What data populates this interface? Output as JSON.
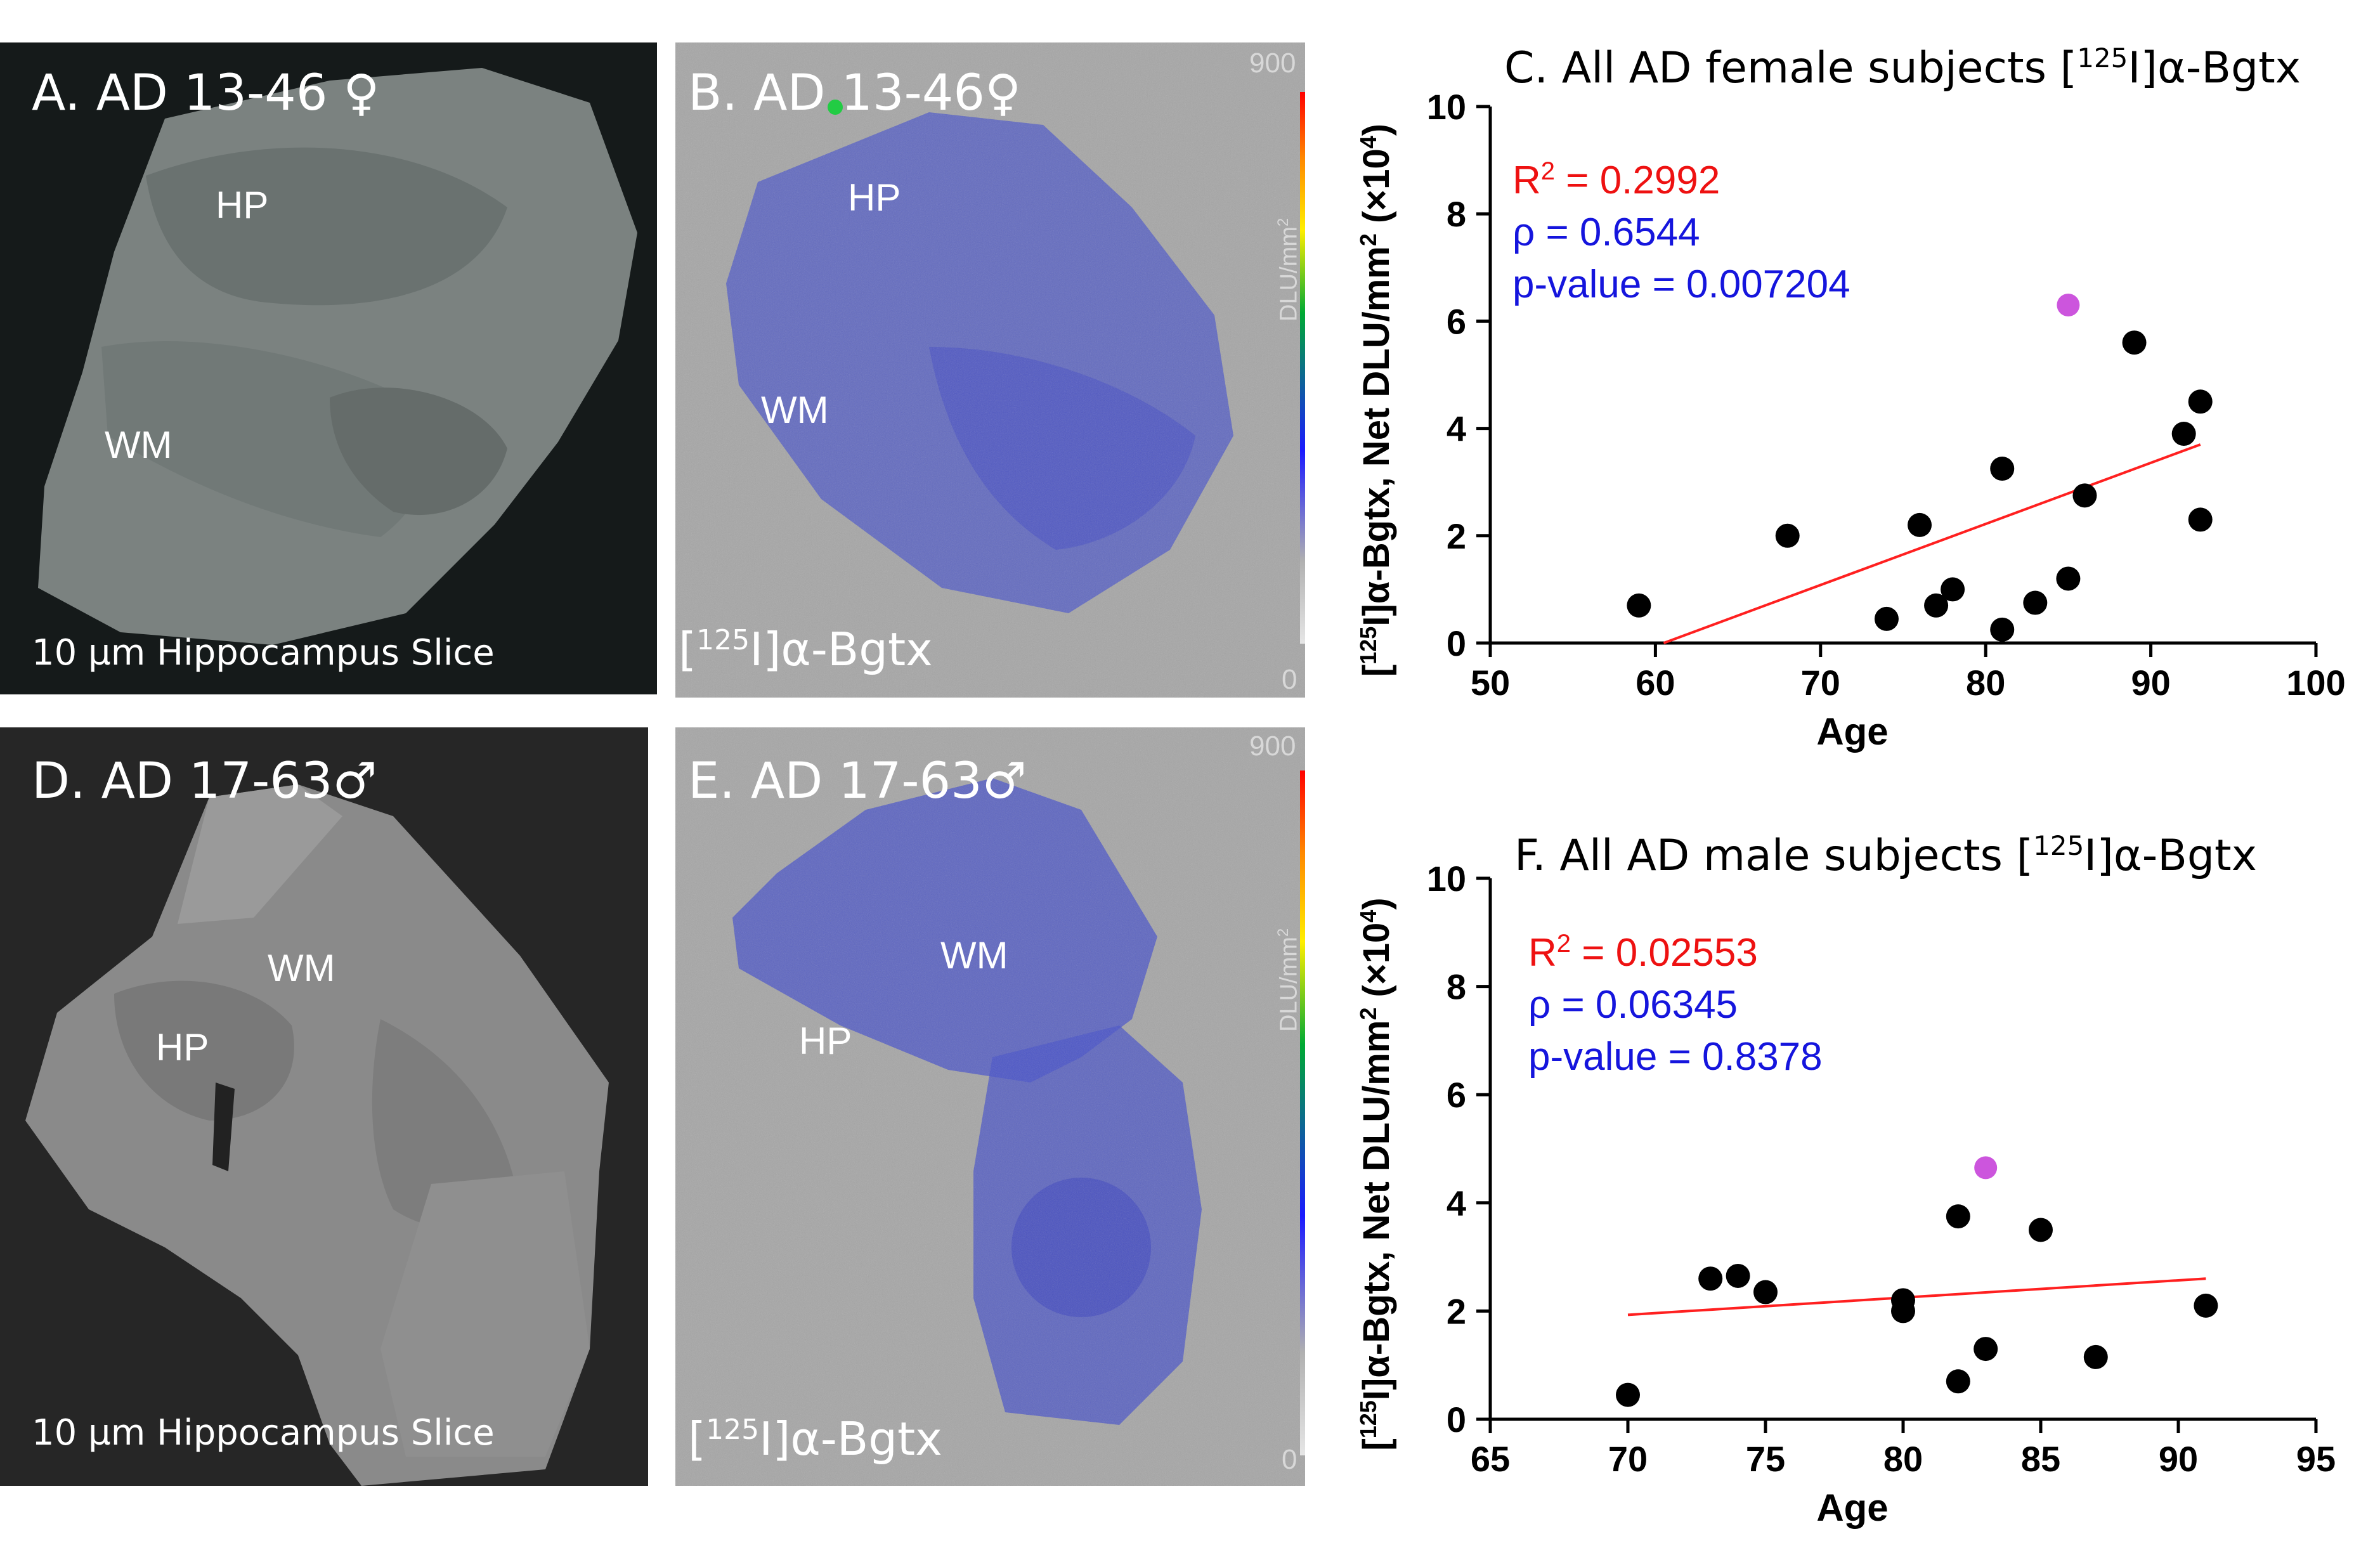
{
  "panels": {
    "a": {
      "title": "A. AD 13-46 ♀",
      "hp_label": "HP",
      "wm_label": "WM",
      "caption": "10 µm Hippocampus Slice"
    },
    "b": {
      "title": "B. AD 13-46♀",
      "hp_label": "HP",
      "wm_label": "WM",
      "caption": "[125I]α-Bgtx",
      "scale_max": "900",
      "scale_min": "0",
      "scale_unit": "DLU/mm2"
    },
    "d": {
      "title": "D. AD 17-63♂",
      "hp_label": "HP",
      "wm_label": "WM",
      "caption": "10 µm Hippocampus Slice"
    },
    "e": {
      "title": "E. AD 17-63♂",
      "hp_label": "HP",
      "wm_label": "WM",
      "caption": "[125I]α-Bgtx",
      "scale_max": "900",
      "scale_min": "0",
      "scale_unit": "DLU/mm2"
    }
  },
  "colors": {
    "regression": "#ff2020",
    "outlier": "#cc55dd",
    "point": "#000000",
    "r2_text": "#ee1111",
    "stat_text": "#1515dd"
  },
  "chart_data": [
    {
      "type": "scatter",
      "title": "C. All AD female subjects [125I]α-Bgtx",
      "xlabel": "Age",
      "ylabel": "[125I]α-Bgtx, Net DLU/mm2 (×104)",
      "xlim": [
        50,
        100
      ],
      "ylim": [
        0,
        10
      ],
      "xticks": [
        50,
        60,
        70,
        80,
        90,
        100
      ],
      "yticks": [
        0,
        2,
        4,
        6,
        8,
        10
      ],
      "points": [
        {
          "x": 59,
          "y": 0.7
        },
        {
          "x": 68,
          "y": 2.0
        },
        {
          "x": 74,
          "y": 0.45
        },
        {
          "x": 76,
          "y": 2.2
        },
        {
          "x": 77,
          "y": 0.7
        },
        {
          "x": 78,
          "y": 1.0
        },
        {
          "x": 81,
          "y": 0.25
        },
        {
          "x": 81,
          "y": 3.25
        },
        {
          "x": 83,
          "y": 0.75
        },
        {
          "x": 85,
          "y": 1.2
        },
        {
          "x": 86,
          "y": 2.75
        },
        {
          "x": 89,
          "y": 5.6
        },
        {
          "x": 92,
          "y": 3.9
        },
        {
          "x": 93,
          "y": 4.5
        },
        {
          "x": 93,
          "y": 2.3
        }
      ],
      "outlier": {
        "x": 85,
        "y": 6.3
      },
      "regression": {
        "x0": 60.5,
        "y0": 0,
        "x1": 93,
        "y1": 3.7
      },
      "r2": "R2 = 0.2992",
      "rho": "ρ = 0.6544",
      "pvalue": "p-value = 0.007204"
    },
    {
      "type": "scatter",
      "title": "F. All AD male subjects [125I]α-Bgtx",
      "xlabel": "Age",
      "ylabel": "[125I]α-Bgtx, Net DLU/mm2 (×104)",
      "xlim": [
        65,
        95
      ],
      "ylim": [
        0,
        10
      ],
      "xticks": [
        65,
        70,
        75,
        80,
        85,
        90,
        95
      ],
      "yticks": [
        0,
        2,
        4,
        6,
        8,
        10
      ],
      "points": [
        {
          "x": 70,
          "y": 0.45
        },
        {
          "x": 73,
          "y": 2.6
        },
        {
          "x": 74,
          "y": 2.65
        },
        {
          "x": 75,
          "y": 2.35
        },
        {
          "x": 80,
          "y": 2.2
        },
        {
          "x": 80,
          "y": 2.0
        },
        {
          "x": 82,
          "y": 3.75
        },
        {
          "x": 82,
          "y": 0.7
        },
        {
          "x": 83,
          "y": 1.3
        },
        {
          "x": 85,
          "y": 3.5
        },
        {
          "x": 87,
          "y": 1.15
        },
        {
          "x": 91,
          "y": 2.1
        }
      ],
      "outlier": {
        "x": 83,
        "y": 4.65
      },
      "regression": {
        "x0": 70,
        "y0": 1.93,
        "x1": 91,
        "y1": 2.6
      },
      "r2": "R2 = 0.02553",
      "rho": "ρ = 0.06345",
      "pvalue": "p-value = 0.8378"
    }
  ]
}
